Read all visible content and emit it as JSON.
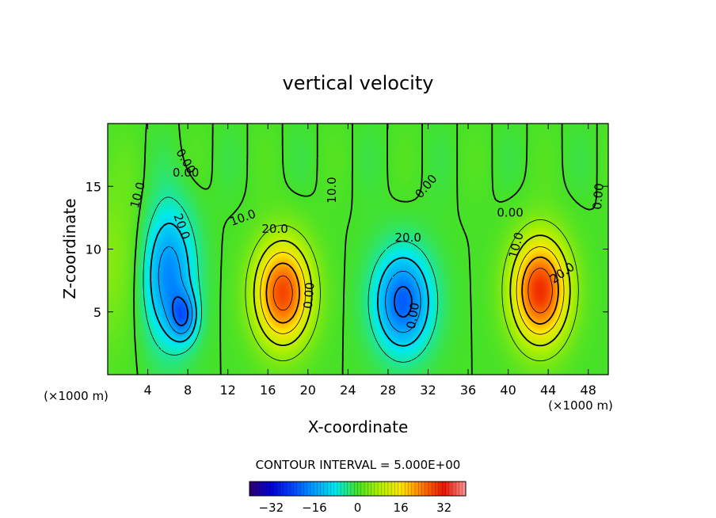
{
  "chart_data": {
    "type": "heatmap",
    "title": "vertical velocity",
    "xlabel": "X-coordinate",
    "ylabel": "Z-coordinate",
    "x_unit": "(×1000 m)",
    "y_unit": "(×1000 m)",
    "xlim": [
      0,
      50
    ],
    "ylim": [
      0,
      20
    ],
    "xticks": [
      4,
      8,
      12,
      16,
      20,
      24,
      28,
      32,
      36,
      40,
      44,
      48
    ],
    "yticks": [
      5,
      10,
      15
    ],
    "cells": [
      {
        "name": "updraft",
        "x": 0.6,
        "z": 9.0,
        "rx": 7.5,
        "rz": 8.5,
        "amp": 5
      },
      {
        "name": "downdraft",
        "x": 6.0,
        "z": 8.0,
        "rx": 3.4,
        "rz": 7.0,
        "amp": -20
      },
      {
        "name": "downdraft",
        "x": 7.6,
        "z": 4.6,
        "rx": 1.7,
        "rz": 2.4,
        "amp": -14
      },
      {
        "name": "updraft",
        "x": 17.5,
        "z": 6.5,
        "rx": 3.6,
        "rz": 5.2,
        "amp": 28
      },
      {
        "name": "downdraft",
        "x": 29.5,
        "z": 5.8,
        "rx": 3.6,
        "rz": 5.0,
        "amp": -22
      },
      {
        "name": "updraft",
        "x": 43.2,
        "z": 6.7,
        "rx": 3.6,
        "rz": 5.3,
        "amp": 30
      }
    ],
    "contour_labels": [
      "10.0",
      "20.0",
      "0.00",
      "10.0",
      "20.0",
      "0.00",
      "10.0",
      "20.0",
      "0.00",
      "10.0",
      "20.0",
      "0.00",
      "0.00",
      "0.00",
      "0.00"
    ],
    "contour_interval": "CONTOUR INTERVAL = 5.000E+00",
    "colorbar": {
      "range": [
        -40,
        40
      ],
      "ticks": [
        "−32",
        "−16",
        "0",
        "16",
        "32"
      ],
      "tick_values": [
        -32,
        -16,
        0,
        16,
        32
      ]
    },
    "grid": false,
    "legend": "none"
  }
}
